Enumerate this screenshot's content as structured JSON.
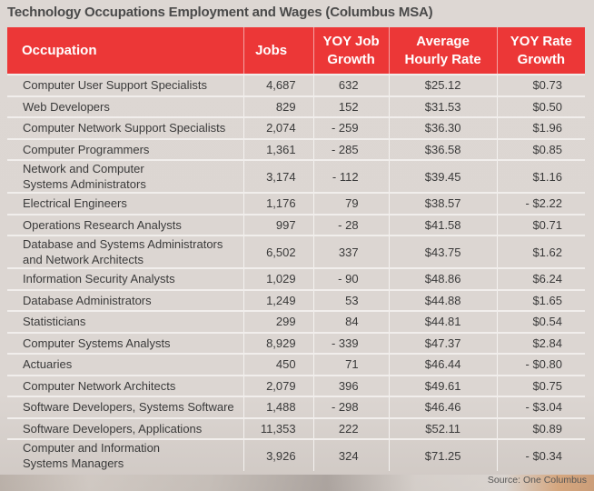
{
  "chart_data": {
    "type": "table",
    "title": "Technology Occupations Employment and Wages (Columbus MSA)",
    "columns": [
      "Occupation",
      "Jobs",
      "YOY Job Growth",
      "Average Hourly Rate",
      "YOY Rate Growth"
    ],
    "header_lines": [
      [
        "Occupation"
      ],
      [
        "Jobs"
      ],
      [
        "YOY Job",
        "Growth"
      ],
      [
        "Average",
        "Hourly Rate"
      ],
      [
        "YOY Rate",
        "Growth"
      ]
    ],
    "rows": [
      {
        "occupation": [
          "Computer User Support Specialists"
        ],
        "jobs": "4,687",
        "yoy_job_growth": "632",
        "avg_hourly_rate": "$25.12",
        "yoy_rate_growth": "$0.73"
      },
      {
        "occupation": [
          "Web Developers"
        ],
        "jobs": "829",
        "yoy_job_growth": "152",
        "avg_hourly_rate": "$31.53",
        "yoy_rate_growth": "$0.50"
      },
      {
        "occupation": [
          "Computer Network Support Specialists"
        ],
        "jobs": "2,074",
        "yoy_job_growth": "- 259",
        "avg_hourly_rate": "$36.30",
        "yoy_rate_growth": "$1.96"
      },
      {
        "occupation": [
          "Computer Programmers"
        ],
        "jobs": "1,361",
        "yoy_job_growth": "- 285",
        "avg_hourly_rate": "$36.58",
        "yoy_rate_growth": "$0.85"
      },
      {
        "occupation": [
          "Network and Computer",
          "Systems Administrators"
        ],
        "jobs": "3,174",
        "yoy_job_growth": "- 112",
        "avg_hourly_rate": "$39.45",
        "yoy_rate_growth": "$1.16"
      },
      {
        "occupation": [
          "Electrical Engineers"
        ],
        "jobs": "1,176",
        "yoy_job_growth": "79",
        "avg_hourly_rate": "$38.57",
        "yoy_rate_growth": "- $2.22"
      },
      {
        "occupation": [
          "Operations Research Analysts"
        ],
        "jobs": "997",
        "yoy_job_growth": "- 28",
        "avg_hourly_rate": "$41.58",
        "yoy_rate_growth": "$0.71"
      },
      {
        "occupation": [
          "Database and Systems Administrators",
          "and Network Architects"
        ],
        "jobs": "6,502",
        "yoy_job_growth": "337",
        "avg_hourly_rate": "$43.75",
        "yoy_rate_growth": "$1.62"
      },
      {
        "occupation": [
          "Information Security Analysts"
        ],
        "jobs": "1,029",
        "yoy_job_growth": "- 90",
        "avg_hourly_rate": "$48.86",
        "yoy_rate_growth": "$6.24"
      },
      {
        "occupation": [
          "Database Administrators"
        ],
        "jobs": "1,249",
        "yoy_job_growth": "53",
        "avg_hourly_rate": "$44.88",
        "yoy_rate_growth": "$1.65"
      },
      {
        "occupation": [
          "Statisticians"
        ],
        "jobs": "299",
        "yoy_job_growth": "84",
        "avg_hourly_rate": "$44.81",
        "yoy_rate_growth": "$0.54"
      },
      {
        "occupation": [
          "Computer Systems Analysts"
        ],
        "jobs": "8,929",
        "yoy_job_growth": "- 339",
        "avg_hourly_rate": "$47.37",
        "yoy_rate_growth": "$2.84"
      },
      {
        "occupation": [
          "Actuaries"
        ],
        "jobs": "450",
        "yoy_job_growth": "71",
        "avg_hourly_rate": "$46.44",
        "yoy_rate_growth": "- $0.80"
      },
      {
        "occupation": [
          "Computer Network Architects"
        ],
        "jobs": "2,079",
        "yoy_job_growth": "396",
        "avg_hourly_rate": "$49.61",
        "yoy_rate_growth": "$0.75"
      },
      {
        "occupation": [
          "Software Developers, Systems Software"
        ],
        "jobs": "1,488",
        "yoy_job_growth": "- 298",
        "avg_hourly_rate": "$46.46",
        "yoy_rate_growth": "- $3.04"
      },
      {
        "occupation": [
          "Software Developers, Applications"
        ],
        "jobs": "11,353",
        "yoy_job_growth": "222",
        "avg_hourly_rate": "$52.11",
        "yoy_rate_growth": "$0.89"
      },
      {
        "occupation": [
          "Computer and Information",
          "Systems Managers"
        ],
        "jobs": "3,926",
        "yoy_job_growth": "324",
        "avg_hourly_rate": "$71.25",
        "yoy_rate_growth": "- $0.34"
      }
    ],
    "source": "Source:  One Columbus"
  },
  "colors": {
    "header_bg": "#ec3737",
    "header_text": "#ffffff",
    "body_bg": "#ddd7d3"
  }
}
